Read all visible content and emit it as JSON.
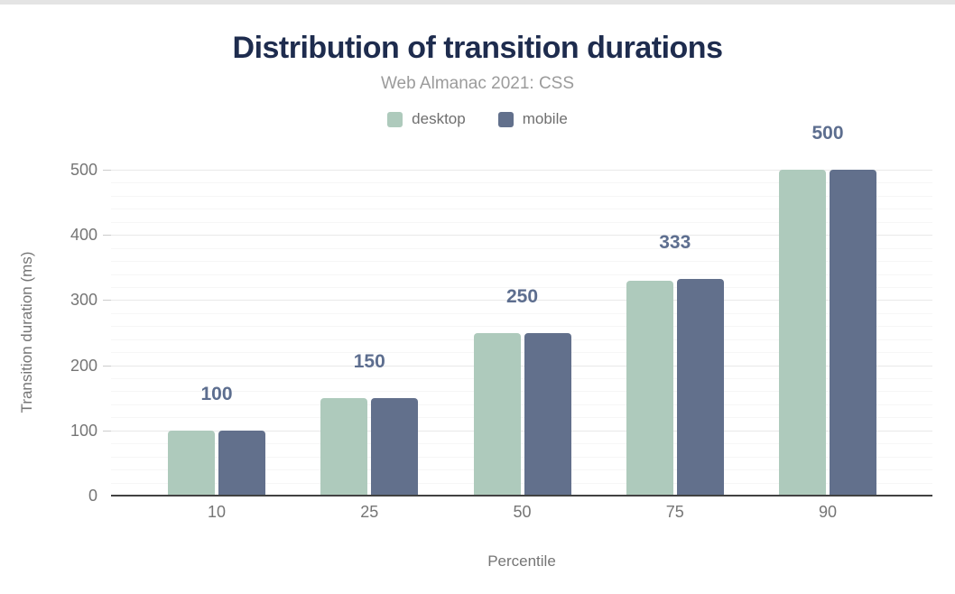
{
  "styles": {
    "title_color": "#1e2c4e",
    "subtitle_color": "#9b9b9b",
    "axis_text_color": "#757575",
    "legend_text_color": "#6f6f6f",
    "data_label_color": "#5d6e8f",
    "grid_major_color": "#e9e9e9",
    "grid_minor_color": "#f6f6f6",
    "axis_line_color": "#424242",
    "tick_color": "#cccccc",
    "top_strip_color": "#e4e4e4",
    "background_color": "#ffffff"
  },
  "chart_data": {
    "type": "bar",
    "title": "Distribution of transition durations",
    "subtitle": "Web Almanac 2021: CSS",
    "xlabel": "Percentile",
    "ylabel": "Transition duration (ms)",
    "categories": [
      "10",
      "25",
      "50",
      "75",
      "90"
    ],
    "series": [
      {
        "name": "desktop",
        "color": "#aecabc",
        "values": [
          100,
          150,
          250,
          330,
          500
        ]
      },
      {
        "name": "mobile",
        "color": "#62708c",
        "values": [
          100,
          150,
          250,
          333,
          500
        ]
      }
    ],
    "data_labels": [
      "100",
      "150",
      "250",
      "333",
      "500"
    ],
    "ylim": [
      0,
      500
    ],
    "ytick_step": 100,
    "yminor_step": 20,
    "yticks": [
      "0",
      "100",
      "200",
      "300",
      "400",
      "500"
    ],
    "grid": "horizontal-on",
    "legend_position": "top-center"
  }
}
